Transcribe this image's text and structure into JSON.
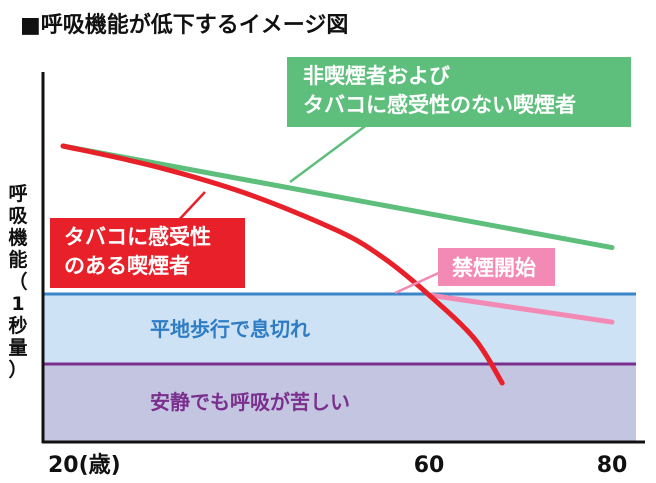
{
  "title": "■呼吸機能が低下するイメージ図",
  "chart_data": {
    "type": "line",
    "title": "■呼吸機能が低下するイメージ図",
    "ylabel": "呼吸機能（1秒量）",
    "ylabel_chars": [
      "呼",
      "吸",
      "機",
      "能",
      "（",
      "1",
      "秒",
      "量",
      "）"
    ],
    "xlim": [
      20,
      80
    ],
    "x_ticks": [
      {
        "value": 20,
        "label": "20(歳)"
      },
      {
        "value": 60,
        "label": "60"
      },
      {
        "value": 80,
        "label": "80"
      }
    ],
    "bands": [
      {
        "name": "平地歩行で息切れ",
        "color": "#cde2f4",
        "line_color": "#3b86c8"
      },
      {
        "name": "安静でも呼吸が苦しい",
        "color": "#c4c6e1",
        "line_color": "#7a2f8e"
      }
    ],
    "series": [
      {
        "name": "非喫煙者およびタバコに感受性のない喫煙者",
        "color": "#5dbf7b",
        "points": [
          [
            20,
            100
          ],
          [
            80,
            70
          ]
        ]
      },
      {
        "name": "タバコに感受性のある喫煙者",
        "color": "#e8202a",
        "points": [
          [
            20,
            100
          ],
          [
            30,
            94
          ],
          [
            40,
            86
          ],
          [
            50,
            75
          ],
          [
            55,
            67
          ],
          [
            60,
            56
          ],
          [
            65,
            43
          ],
          [
            68,
            30
          ]
        ]
      },
      {
        "name": "禁煙開始",
        "color": "#f28ab5",
        "points": [
          [
            60,
            56
          ],
          [
            80,
            48
          ]
        ]
      }
    ],
    "annotations": [
      {
        "id": "green",
        "lines": [
          "非喫煙者および",
          "タバコに感受性のない喫煙者"
        ],
        "color": "#5dbf7b"
      },
      {
        "id": "red",
        "lines": [
          "タバコに感受性",
          "のある喫煙者"
        ],
        "color": "#e8202a"
      },
      {
        "id": "pink",
        "lines": [
          "禁煙開始"
        ],
        "color": "#f28ab5"
      }
    ]
  }
}
